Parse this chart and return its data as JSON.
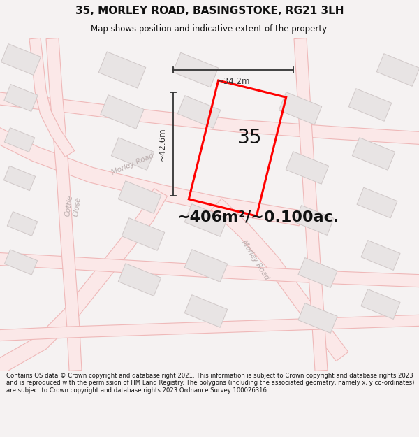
{
  "title": "35, MORLEY ROAD, BASINGSTOKE, RG21 3LH",
  "subtitle": "Map shows position and indicative extent of the property.",
  "footer": "Contains OS data © Crown copyright and database right 2021. This information is subject to Crown copyright and database rights 2023 and is reproduced with the permission of HM Land Registry. The polygons (including the associated geometry, namely x, y co-ordinates) are subject to Crown copyright and database rights 2023 Ordnance Survey 100026316.",
  "area_text": "~406m²/~0.100ac.",
  "plot_number": "35",
  "dim_height": "~42.6m",
  "dim_width": "~34.2m",
  "bg_map": "#ffffff",
  "bg_page": "#f5f2f2",
  "plot_color": "#ff0000",
  "road_line_color": "#f0a8a8",
  "road_fill_color": "#fce8e8",
  "building_fill": "#e8e4e4",
  "building_edge": "#d0c8c8",
  "street_label_color": "#b8aaaa",
  "dim_color": "#333333",
  "title_color": "#111111"
}
